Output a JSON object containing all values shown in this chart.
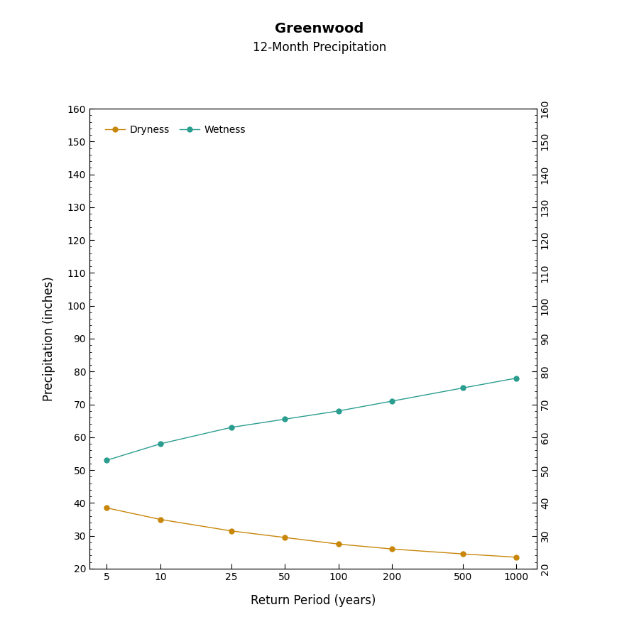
{
  "title": "Greenwood",
  "subtitle": "12-Month Precipitation",
  "xlabel": "Return Period (years)",
  "ylabel": "Precipitation (inches)",
  "x_values": [
    5,
    10,
    25,
    50,
    100,
    200,
    500,
    1000
  ],
  "dryness_values": [
    38.5,
    35.0,
    31.5,
    29.5,
    27.5,
    26.0,
    24.5,
    23.5
  ],
  "wetness_values": [
    53.0,
    58.0,
    63.0,
    65.5,
    68.0,
    71.0,
    75.0,
    78.0
  ],
  "dryness_color": "#C8860A",
  "wetness_color": "#2A9D8F",
  "ylim": [
    20,
    160
  ],
  "yticks": [
    20,
    30,
    40,
    50,
    60,
    70,
    80,
    90,
    100,
    110,
    120,
    130,
    140,
    150,
    160
  ],
  "background_color": "#FFFFFF",
  "title_fontsize": 14,
  "subtitle_fontsize": 12,
  "axis_label_fontsize": 12,
  "tick_fontsize": 10
}
